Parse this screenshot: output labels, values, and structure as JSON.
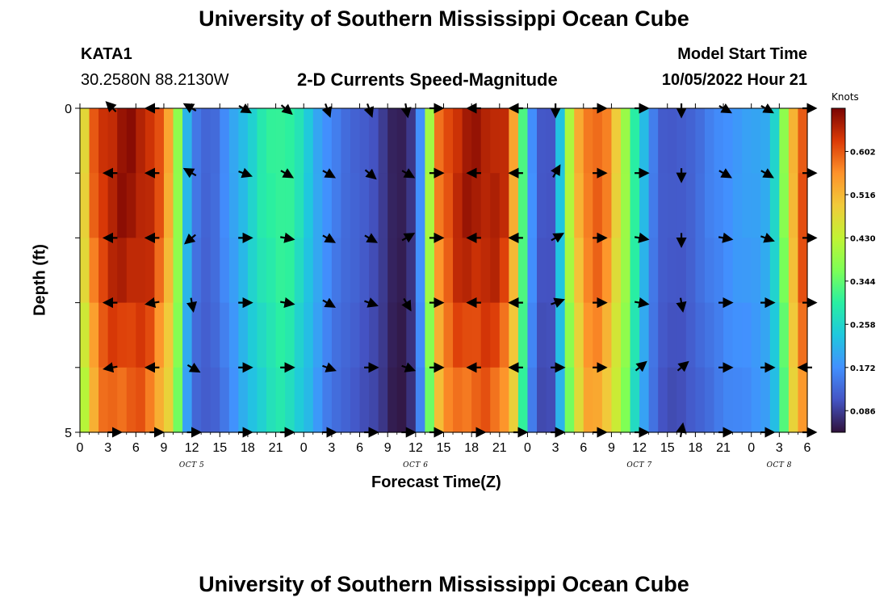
{
  "titles": {
    "top": "University of Southern Mississippi Ocean Cube",
    "bottom": "University of Southern Mississippi Ocean Cube"
  },
  "station": {
    "id": "KATA1",
    "coords": "30.2580N  88.2130W"
  },
  "subtitle": "2-D Currents Speed-Magnitude",
  "model": {
    "label": "Model Start Time",
    "time": "10/05/2022 Hour 21"
  },
  "chart_data": {
    "type": "heatmap",
    "title": "2-D Currents Speed-Magnitude",
    "xlabel": "Forecast Time(Z)",
    "ylabel": "Depth (ft)",
    "units": "Knots",
    "xlim": [
      0,
      78
    ],
    "ylim": [
      5,
      0
    ],
    "x_tick_labels": [
      "0",
      "3",
      "6",
      "9",
      "12",
      "15",
      "18",
      "21",
      "0",
      "3",
      "6",
      "9",
      "12",
      "15",
      "18",
      "21",
      "0",
      "3",
      "6",
      "9",
      "12",
      "15",
      "18",
      "21",
      "0",
      "3",
      "6"
    ],
    "y_tick_labels": [
      "0",
      "5"
    ],
    "date_labels": [
      {
        "label": "OCT 5",
        "x": 12
      },
      {
        "label": "OCT 6",
        "x": 36
      },
      {
        "label": "OCT 7",
        "x": 60
      },
      {
        "label": "OCT 8",
        "x": 75
      }
    ],
    "colorbar": {
      "label": "Knots",
      "min": 0.043,
      "max": 0.688,
      "ticks": [
        "0.086",
        "0.172",
        "0.258",
        "0.344",
        "0.430",
        "0.516",
        "0.602"
      ],
      "tick_values": [
        0.086,
        0.172,
        0.258,
        0.344,
        0.43,
        0.516,
        0.602
      ]
    },
    "depth_levels": [
      0,
      1,
      2,
      3,
      4,
      5
    ],
    "speed_profile": {
      "x": [
        0,
        1,
        2,
        4,
        6,
        8,
        10,
        11,
        12,
        14,
        16,
        18,
        20,
        22,
        24,
        26,
        28,
        30,
        32,
        33,
        34,
        35,
        36,
        37,
        38,
        40,
        42,
        44,
        46,
        47,
        48,
        49,
        50,
        51,
        52,
        54,
        56,
        58,
        60,
        62,
        64,
        66,
        68,
        70,
        72,
        74,
        75,
        76,
        77,
        78
      ],
      "values": [
        0.4,
        0.55,
        0.63,
        0.66,
        0.67,
        0.63,
        0.5,
        0.28,
        0.15,
        0.12,
        0.18,
        0.24,
        0.3,
        0.32,
        0.26,
        0.18,
        0.14,
        0.12,
        0.1,
        0.07,
        0.05,
        0.06,
        0.1,
        0.25,
        0.55,
        0.64,
        0.66,
        0.66,
        0.62,
        0.45,
        0.22,
        0.12,
        0.1,
        0.12,
        0.35,
        0.58,
        0.6,
        0.45,
        0.25,
        0.12,
        0.11,
        0.13,
        0.16,
        0.18,
        0.19,
        0.21,
        0.3,
        0.45,
        0.6,
        0.62
      ]
    },
    "depth_factor": [
      1.0,
      1.0,
      0.98,
      0.94,
      0.9,
      0.82
    ],
    "arrows": {
      "x": [
        3.5,
        8,
        12,
        17.5,
        22,
        26.5,
        31,
        35,
        38,
        42.5,
        47,
        51,
        55.5,
        60,
        64.5,
        69,
        73.5,
        78
      ],
      "rows": [
        [
          -135,
          180,
          -150,
          30,
          40,
          70,
          70,
          80,
          0,
          180,
          180,
          90,
          0,
          0,
          90,
          30,
          30,
          0
        ],
        [
          180,
          180,
          -150,
          20,
          30,
          30,
          40,
          30,
          0,
          180,
          180,
          -60,
          0,
          0,
          90,
          30,
          30,
          0
        ],
        [
          180,
          180,
          140,
          0,
          10,
          30,
          30,
          -30,
          0,
          180,
          180,
          -30,
          0,
          10,
          90,
          10,
          20,
          0
        ],
        [
          180,
          170,
          80,
          0,
          10,
          30,
          20,
          60,
          0,
          180,
          180,
          -20,
          0,
          10,
          80,
          0,
          0,
          0
        ],
        [
          170,
          180,
          30,
          0,
          0,
          20,
          0,
          20,
          0,
          180,
          180,
          0,
          0,
          -40,
          -40,
          0,
          0,
          180
        ],
        [
          0,
          0,
          0,
          0,
          0,
          0,
          0,
          0,
          0,
          0,
          0,
          0,
          0,
          0,
          -80,
          0,
          0,
          0
        ]
      ]
    }
  }
}
